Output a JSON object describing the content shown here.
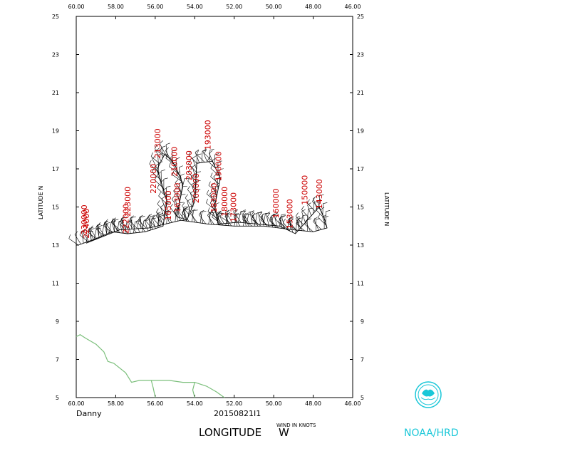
{
  "chart_data": {
    "type": "scatter",
    "storm_name": "Danny",
    "flight_id": "20150821I1",
    "x_axis": {
      "label": "LONGITUDE W",
      "range": [
        60,
        46
      ],
      "ticks": [
        "60.00",
        "58.00",
        "56.00",
        "54.00",
        "52.00",
        "50.00",
        "48.00",
        "46.00"
      ]
    },
    "y_axis": {
      "label": "LATITUDE N",
      "range": [
        5,
        25
      ],
      "ticks": [
        "5",
        "7",
        "9",
        "11",
        "13",
        "15",
        "17",
        "19",
        "21",
        "23",
        "25"
      ]
    },
    "wind_units_label": "WIND IN KNOTS",
    "grid": false,
    "track": [
      {
        "lon": 59.9,
        "lat": 13.0
      },
      {
        "lon": 59.1,
        "lat": 13.3
      },
      {
        "lon": 58.2,
        "lat": 13.7
      },
      {
        "lon": 57.4,
        "lat": 13.6
      },
      {
        "lon": 56.5,
        "lat": 13.7
      },
      {
        "lon": 55.6,
        "lat": 14.0
      },
      {
        "lon": 55.4,
        "lat": 15.3
      },
      {
        "lon": 55.9,
        "lat": 17.0
      },
      {
        "lon": 55.5,
        "lat": 17.8
      },
      {
        "lon": 55.0,
        "lat": 17.2
      },
      {
        "lon": 54.6,
        "lat": 16.2
      },
      {
        "lon": 54.9,
        "lat": 14.5
      },
      {
        "lon": 54.4,
        "lat": 14.3
      },
      {
        "lon": 54.0,
        "lat": 15.3
      },
      {
        "lon": 53.9,
        "lat": 17.3
      },
      {
        "lon": 53.1,
        "lat": 17.4
      },
      {
        "lon": 52.7,
        "lat": 16.5
      },
      {
        "lon": 53.0,
        "lat": 15.0
      },
      {
        "lon": 52.8,
        "lat": 14.1
      },
      {
        "lon": 51.8,
        "lat": 14.2
      },
      {
        "lon": 50.8,
        "lat": 14.1
      },
      {
        "lon": 49.7,
        "lat": 14.0
      },
      {
        "lon": 48.9,
        "lat": 13.6
      },
      {
        "lon": 48.3,
        "lat": 14.3
      },
      {
        "lon": 47.7,
        "lat": 15.0
      },
      {
        "lon": 47.4,
        "lat": 14.3
      },
      {
        "lon": 47.3,
        "lat": 13.9
      },
      {
        "lon": 48.0,
        "lat": 13.7
      },
      {
        "lon": 49.0,
        "lat": 13.8
      },
      {
        "lon": 50.5,
        "lat": 14.0
      },
      {
        "lon": 52.0,
        "lat": 14.0
      },
      {
        "lon": 53.3,
        "lat": 14.1
      },
      {
        "lon": 54.7,
        "lat": 14.3
      },
      {
        "lon": 56.3,
        "lat": 13.9
      },
      {
        "lon": 57.8,
        "lat": 13.8
      },
      {
        "lon": 59.5,
        "lat": 13.1
      }
    ],
    "time_labels": [
      {
        "text": "230000",
        "lon": 59.45,
        "lat": 13.55
      },
      {
        "text": "224000",
        "lon": 59.35,
        "lat": 13.35
      },
      {
        "text": "223000",
        "lon": 57.25,
        "lat": 14.5
      },
      {
        "text": "222000",
        "lon": 57.35,
        "lat": 13.6
      },
      {
        "text": "220000",
        "lon": 55.95,
        "lat": 15.7
      },
      {
        "text": "213000",
        "lon": 55.75,
        "lat": 17.55
      },
      {
        "text": "210000",
        "lon": 54.9,
        "lat": 16.6
      },
      {
        "text": "203000",
        "lon": 54.15,
        "lat": 16.4
      },
      {
        "text": "200000",
        "lon": 53.8,
        "lat": 15.2
      },
      {
        "text": "193000",
        "lon": 53.2,
        "lat": 18.0
      },
      {
        "text": "190000",
        "lon": 52.65,
        "lat": 16.35
      },
      {
        "text": "183000",
        "lon": 52.9,
        "lat": 14.7
      },
      {
        "text": "180000",
        "lon": 52.35,
        "lat": 14.5
      },
      {
        "text": "173000",
        "lon": 51.9,
        "lat": 14.2
      },
      {
        "text": "160000",
        "lon": 49.75,
        "lat": 14.4
      },
      {
        "text": "153000",
        "lon": 49.05,
        "lat": 13.85
      },
      {
        "text": "150000",
        "lon": 48.3,
        "lat": 15.1
      },
      {
        "text": "143000",
        "lon": 47.55,
        "lat": 14.9
      },
      {
        "text": "165000",
        "lon": 55.2,
        "lat": 14.3
      },
      {
        "text": "163000",
        "lon": 54.75,
        "lat": 14.7
      }
    ],
    "coastline": [
      {
        "lon": 60.0,
        "lat": 8.2
      },
      {
        "lon": 59.8,
        "lat": 8.3
      },
      {
        "lon": 59.5,
        "lat": 8.1
      },
      {
        "lon": 59.0,
        "lat": 7.8
      },
      {
        "lon": 58.6,
        "lat": 7.4
      },
      {
        "lon": 58.4,
        "lat": 6.9
      },
      {
        "lon": 58.1,
        "lat": 6.8
      },
      {
        "lon": 57.5,
        "lat": 6.3
      },
      {
        "lon": 57.2,
        "lat": 5.8
      },
      {
        "lon": 56.8,
        "lat": 5.9
      },
      {
        "lon": 56.0,
        "lat": 5.9
      },
      {
        "lon": 55.3,
        "lat": 5.9
      },
      {
        "lon": 54.6,
        "lat": 5.8
      },
      {
        "lon": 54.0,
        "lat": 5.8
      },
      {
        "lon": 53.4,
        "lat": 5.6
      },
      {
        "lon": 52.9,
        "lat": 5.3
      },
      {
        "lon": 52.5,
        "lat": 5.0
      }
    ],
    "rivers": [
      [
        {
          "lon": 56.2,
          "lat": 5.9
        },
        {
          "lon": 56.1,
          "lat": 5.5
        },
        {
          "lon": 56.0,
          "lat": 5.0
        }
      ],
      [
        {
          "lon": 54.0,
          "lat": 5.8
        },
        {
          "lon": 54.1,
          "lat": 5.4
        },
        {
          "lon": 54.0,
          "lat": 5.0
        }
      ]
    ]
  },
  "colors": {
    "track": "#000000",
    "time_labels": "#cc0000",
    "coastline": "#7bbf7b",
    "logo": "#19c7d8"
  },
  "logo": {
    "text": "NOAA/HRD",
    "icon": "noaa-logo-icon"
  }
}
